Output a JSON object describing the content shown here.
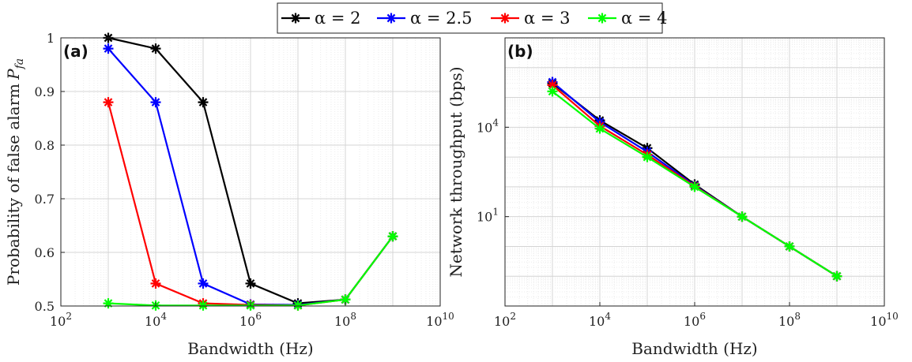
{
  "legend": [
    {
      "label": "α = 2",
      "color": "#000000"
    },
    {
      "label": "α = 2.5",
      "color": "#0000ff"
    },
    {
      "label": "α = 3",
      "color": "#ff0000"
    },
    {
      "label": "α = 4",
      "color": "#00ff00"
    }
  ],
  "chart_data": [
    {
      "type": "line",
      "panel_label": "(a)",
      "xlabel": "Bandwidth (Hz)",
      "ylabel": "Probability of false alarm P_fa",
      "xscale": "log",
      "yscale": "linear",
      "xlim": [
        100,
        10000000000
      ],
      "ylim": [
        0.5,
        1.0
      ],
      "xticks": [
        {
          "exp": "2"
        },
        {
          "exp": "4"
        },
        {
          "exp": "6"
        },
        {
          "exp": "8"
        },
        {
          "exp": "10"
        }
      ],
      "yticks": [
        "0.5",
        "0.6",
        "0.7",
        "0.8",
        "0.9",
        "1"
      ],
      "x": [
        1000,
        10000,
        100000,
        1000000,
        10000000,
        100000000,
        1000000000
      ],
      "series": [
        {
          "name": "α = 2",
          "color": "#000000",
          "values": [
            1.0,
            0.98,
            0.88,
            0.542,
            0.505,
            0.512,
            0.63
          ]
        },
        {
          "name": "α = 2.5",
          "color": "#0000ff",
          "values": [
            0.98,
            0.88,
            0.542,
            0.503,
            0.502,
            0.512,
            0.63
          ]
        },
        {
          "name": "α = 3",
          "color": "#ff0000",
          "values": [
            0.88,
            0.542,
            0.505,
            0.502,
            0.501,
            0.512,
            0.63
          ]
        },
        {
          "name": "α = 4",
          "color": "#00ff00",
          "values": [
            0.505,
            0.501,
            0.501,
            0.501,
            0.501,
            0.512,
            0.63
          ]
        }
      ],
      "grid": true
    },
    {
      "type": "line",
      "panel_label": "(b)",
      "xlabel": "Bandwidth (Hz)",
      "ylabel": "Network throughput (bps)",
      "xscale": "log",
      "yscale": "log",
      "xlim": [
        100,
        10000000000
      ],
      "ylim": [
        0.01,
        10000000
      ],
      "xticks": [
        {
          "exp": "2"
        },
        {
          "exp": "4"
        },
        {
          "exp": "6"
        },
        {
          "exp": "8"
        },
        {
          "exp": "10"
        }
      ],
      "yticks": [
        {
          "exp": "1",
          "value": 10
        },
        {
          "exp": "4",
          "value": 10000
        }
      ],
      "x": [
        1000,
        10000,
        100000,
        1000000,
        10000000,
        100000000,
        1000000000
      ],
      "series": [
        {
          "name": "α = 2",
          "color": "#000000",
          "values": [
            300000,
            17000,
            2000,
            120,
            10,
            1,
            0.1
          ]
        },
        {
          "name": "α = 2.5",
          "color": "#0000ff",
          "values": [
            330000,
            15000,
            1500,
            110,
            10,
            1,
            0.1
          ]
        },
        {
          "name": "α = 3",
          "color": "#ff0000",
          "values": [
            260000,
            11000,
            1200,
            105,
            10,
            1,
            0.1
          ]
        },
        {
          "name": "α = 4",
          "color": "#00ff00",
          "values": [
            160000,
            9000,
            1000,
            100,
            10,
            1,
            0.1
          ]
        }
      ],
      "grid": true
    }
  ]
}
